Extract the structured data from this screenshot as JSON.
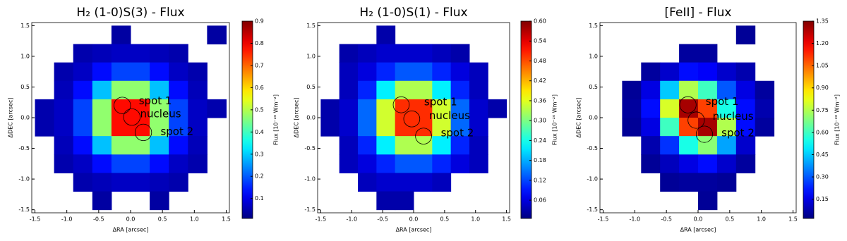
{
  "chart_data": [
    {
      "type": "heatmap",
      "title": "H₂ (1-0)S(3) - Flux",
      "xlabel": "ΔRA [arcsec]",
      "ylabel": "ΔDEC [arcsec]",
      "colorbar_label": "Flux [10⁻²⁰ Wm⁻²]",
      "xlim": [
        -1.55,
        1.55
      ],
      "ylim": [
        -1.55,
        1.55
      ],
      "clim": [
        0.01,
        0.9
      ],
      "xticks": [
        -1.5,
        {
          "value": -1.0,
          "label": "-1.0"
        },
        -0.5,
        {
          "value": 0.0,
          "label": "0.0"
        },
        0.5,
        {
          "value": 1.0,
          "label": "1.0"
        },
        1.5
      ],
      "yticks": [
        -1.5,
        {
          "value": -1.0,
          "label": "-1.0"
        },
        -0.5,
        {
          "value": 0.0,
          "label": "0.0"
        },
        0.5,
        {
          "value": 1.0,
          "label": "1.0"
        },
        1.5
      ],
      "cticks": [
        0.1,
        0.2,
        0.3,
        0.4,
        0.5,
        0.6,
        0.7,
        0.8,
        0.9
      ],
      "x": [
        -1.35,
        -1.05,
        -0.75,
        -0.45,
        -0.15,
        0.15,
        0.45,
        0.75,
        1.05,
        1.35
      ],
      "y": [
        1.35,
        1.05,
        0.75,
        0.45,
        0.15,
        -0.15,
        -0.45,
        -0.75,
        -1.05,
        -1.35
      ],
      "z": [
        [
          null,
          null,
          null,
          null,
          0.04,
          null,
          null,
          null,
          null,
          0.04
        ],
        [
          null,
          null,
          0.05,
          0.06,
          0.07,
          0.07,
          0.06,
          0.05,
          null,
          null
        ],
        [
          null,
          0.05,
          0.07,
          0.13,
          0.18,
          0.18,
          0.13,
          0.07,
          0.05,
          null
        ],
        [
          null,
          0.06,
          0.13,
          0.29,
          0.47,
          0.47,
          0.29,
          0.13,
          0.06,
          null
        ],
        [
          0.05,
          0.07,
          0.18,
          0.47,
          0.78,
          0.78,
          0.47,
          0.18,
          0.07,
          0.05
        ],
        [
          0.05,
          0.07,
          0.18,
          0.47,
          0.78,
          0.78,
          0.47,
          0.18,
          0.07,
          null
        ],
        [
          null,
          0.06,
          0.13,
          0.29,
          0.47,
          0.47,
          0.29,
          0.13,
          0.06,
          null
        ],
        [
          null,
          0.05,
          0.07,
          0.13,
          0.18,
          0.18,
          0.13,
          0.07,
          0.05,
          null
        ],
        [
          null,
          null,
          0.05,
          0.06,
          0.07,
          0.07,
          0.06,
          0.05,
          null,
          null
        ],
        [
          null,
          null,
          null,
          0.04,
          null,
          null,
          0.04,
          null,
          null,
          null
        ]
      ],
      "circles": [
        {
          "x": -0.13,
          "y": 0.2,
          "r": 0.13
        },
        {
          "x": 0.02,
          "y": 0.01,
          "r": 0.13
        },
        {
          "x": 0.2,
          "y": -0.24,
          "r": 0.13
        }
      ],
      "annotations": [
        {
          "text": "spot 1",
          "x": 0.13,
          "y": 0.27
        },
        {
          "text": "nucleus",
          "x": 0.15,
          "y": 0.06
        },
        {
          "text": "spot 2",
          "x": 0.47,
          "y": -0.23
        }
      ]
    },
    {
      "type": "heatmap",
      "title": "H₂ (1-0)S(1) - Flux",
      "xlabel": "ΔRA [arcsec]",
      "ylabel": "ΔDEC [arcsec]",
      "colorbar_label": "Flux [10⁻²⁰ Wm⁻²]",
      "xlim": [
        -1.55,
        1.55
      ],
      "ylim": [
        -1.55,
        1.55
      ],
      "clim": [
        0.005,
        0.6
      ],
      "xticks": [
        -1.5,
        {
          "value": -1.0,
          "label": "-1.0"
        },
        -0.5,
        {
          "value": 0.0,
          "label": "0.0"
        },
        0.5,
        {
          "value": 1.0,
          "label": "1.0"
        },
        1.5
      ],
      "yticks": [
        -1.5,
        {
          "value": -1.0,
          "label": "-1.0"
        },
        -0.5,
        {
          "value": 0.0,
          "label": "0.0"
        },
        0.5,
        {
          "value": 1.0,
          "label": "1.0"
        },
        1.5
      ],
      "cticks": [
        0.06,
        0.12,
        0.18,
        0.24,
        {
          "value": 0.3,
          "label": "0.30"
        },
        0.36,
        0.42,
        0.48,
        0.54,
        {
          "value": 0.6,
          "label": "0.60"
        }
      ],
      "x": [
        -1.35,
        -1.05,
        -0.75,
        -0.45,
        -0.15,
        0.15,
        0.45,
        0.75,
        1.05,
        1.35
      ],
      "y": [
        1.35,
        1.05,
        0.75,
        0.45,
        0.15,
        -0.15,
        -0.45,
        -0.75,
        -1.05,
        -1.35
      ],
      "z": [
        [
          null,
          null,
          null,
          0.03,
          null,
          null,
          null,
          null,
          null,
          null
        ],
        [
          null,
          0.03,
          0.04,
          0.05,
          0.05,
          0.05,
          0.04,
          0.03,
          null,
          null
        ],
        [
          null,
          0.04,
          0.06,
          0.1,
          0.13,
          0.13,
          0.1,
          0.06,
          0.04,
          null
        ],
        [
          null,
          0.04,
          0.1,
          0.22,
          0.33,
          0.33,
          0.22,
          0.1,
          0.04,
          null
        ],
        [
          0.03,
          0.05,
          0.14,
          0.35,
          0.5,
          0.5,
          0.35,
          0.14,
          0.05,
          0.03
        ],
        [
          0.03,
          0.05,
          0.14,
          0.35,
          0.5,
          0.5,
          0.35,
          0.14,
          0.05,
          null
        ],
        [
          null,
          0.04,
          0.1,
          0.22,
          0.33,
          0.33,
          0.22,
          0.1,
          0.04,
          null
        ],
        [
          null,
          0.04,
          0.06,
          0.1,
          0.13,
          0.13,
          0.1,
          0.06,
          0.04,
          null
        ],
        [
          null,
          null,
          0.04,
          0.05,
          0.05,
          0.05,
          0.04,
          null,
          null,
          null
        ],
        [
          null,
          null,
          null,
          0.03,
          0.03,
          null,
          null,
          null,
          null,
          null
        ]
      ],
      "circles": [
        {
          "x": -0.2,
          "y": 0.21,
          "r": 0.13
        },
        {
          "x": -0.03,
          "y": -0.02,
          "r": 0.13
        },
        {
          "x": 0.16,
          "y": -0.3,
          "r": 0.13
        }
      ],
      "annotations": [
        {
          "text": "spot 1",
          "x": 0.17,
          "y": 0.25
        },
        {
          "text": "nucleus",
          "x": 0.25,
          "y": 0.03
        },
        {
          "text": "spot 2",
          "x": 0.44,
          "y": -0.25
        }
      ]
    },
    {
      "type": "heatmap",
      "title": "[FeII] - Flux",
      "xlabel": "ΔRA [arcsec]",
      "ylabel": "ΔDEC [arcsec]",
      "colorbar_label": "Flux [10⁻²⁰ Wm⁻²]",
      "xlim": [
        -1.55,
        1.55
      ],
      "ylim": [
        -1.55,
        1.55
      ],
      "clim": [
        0.02,
        1.35
      ],
      "xticks": [
        -1.5,
        {
          "value": -1.0,
          "label": "-1.0"
        },
        -0.5,
        {
          "value": 0.0,
          "label": "0.0"
        },
        0.5,
        {
          "value": 1.0,
          "label": "1.0"
        },
        1.5
      ],
      "yticks": [
        -1.5,
        {
          "value": -1.0,
          "label": "-1.0"
        },
        -0.5,
        {
          "value": 0.0,
          "label": "0.0"
        },
        0.5,
        {
          "value": 1.0,
          "label": "1.0"
        },
        1.5
      ],
      "cticks": [
        0.15,
        {
          "value": 0.3,
          "label": "0.30"
        },
        0.45,
        {
          "value": 0.6,
          "label": "0.60"
        },
        0.75,
        {
          "value": 0.9,
          "label": "0.90"
        },
        1.05,
        {
          "value": 1.2,
          "label": "1.20"
        },
        1.35
      ],
      "x": [
        -1.35,
        -1.05,
        -0.75,
        -0.45,
        -0.15,
        0.15,
        0.45,
        0.75,
        1.05,
        1.35
      ],
      "y": [
        1.35,
        1.05,
        0.75,
        0.45,
        0.15,
        -0.15,
        -0.45,
        -0.75,
        -1.05,
        -1.35
      ],
      "z": [
        [
          null,
          null,
          null,
          null,
          null,
          null,
          null,
          0.05,
          null,
          null
        ],
        [
          null,
          null,
          null,
          null,
          0.06,
          0.06,
          null,
          null,
          null,
          null
        ],
        [
          null,
          null,
          0.06,
          0.12,
          0.2,
          0.18,
          0.12,
          0.08,
          null,
          null
        ],
        [
          null,
          0.05,
          0.15,
          0.45,
          0.75,
          0.6,
          0.3,
          0.15,
          0.06,
          null
        ],
        [
          null,
          0.06,
          0.2,
          0.8,
          1.3,
          1.1,
          0.55,
          0.2,
          0.08,
          null
        ],
        [
          null,
          0.05,
          0.15,
          0.6,
          1.1,
          1.3,
          0.75,
          0.2,
          0.06,
          null
        ],
        [
          null,
          null,
          0.08,
          0.25,
          0.55,
          0.7,
          0.4,
          0.12,
          null,
          null
        ],
        [
          null,
          null,
          0.05,
          0.1,
          0.15,
          0.2,
          0.12,
          0.06,
          null,
          null
        ],
        [
          null,
          null,
          null,
          0.05,
          0.06,
          0.06,
          0.05,
          null,
          null,
          null
        ],
        [
          null,
          null,
          null,
          null,
          null,
          0.05,
          null,
          null,
          null,
          null
        ]
      ],
      "circles": [
        {
          "x": -0.16,
          "y": 0.21,
          "r": 0.13
        },
        {
          "x": -0.03,
          "y": -0.04,
          "r": 0.13
        },
        {
          "x": 0.1,
          "y": -0.27,
          "r": 0.13
        }
      ],
      "annotations": [
        {
          "text": "spot 1",
          "x": 0.12,
          "y": 0.26
        },
        {
          "text": "nucleus",
          "x": 0.23,
          "y": 0.02
        },
        {
          "text": "spot 2",
          "x": 0.37,
          "y": -0.25
        }
      ]
    }
  ]
}
